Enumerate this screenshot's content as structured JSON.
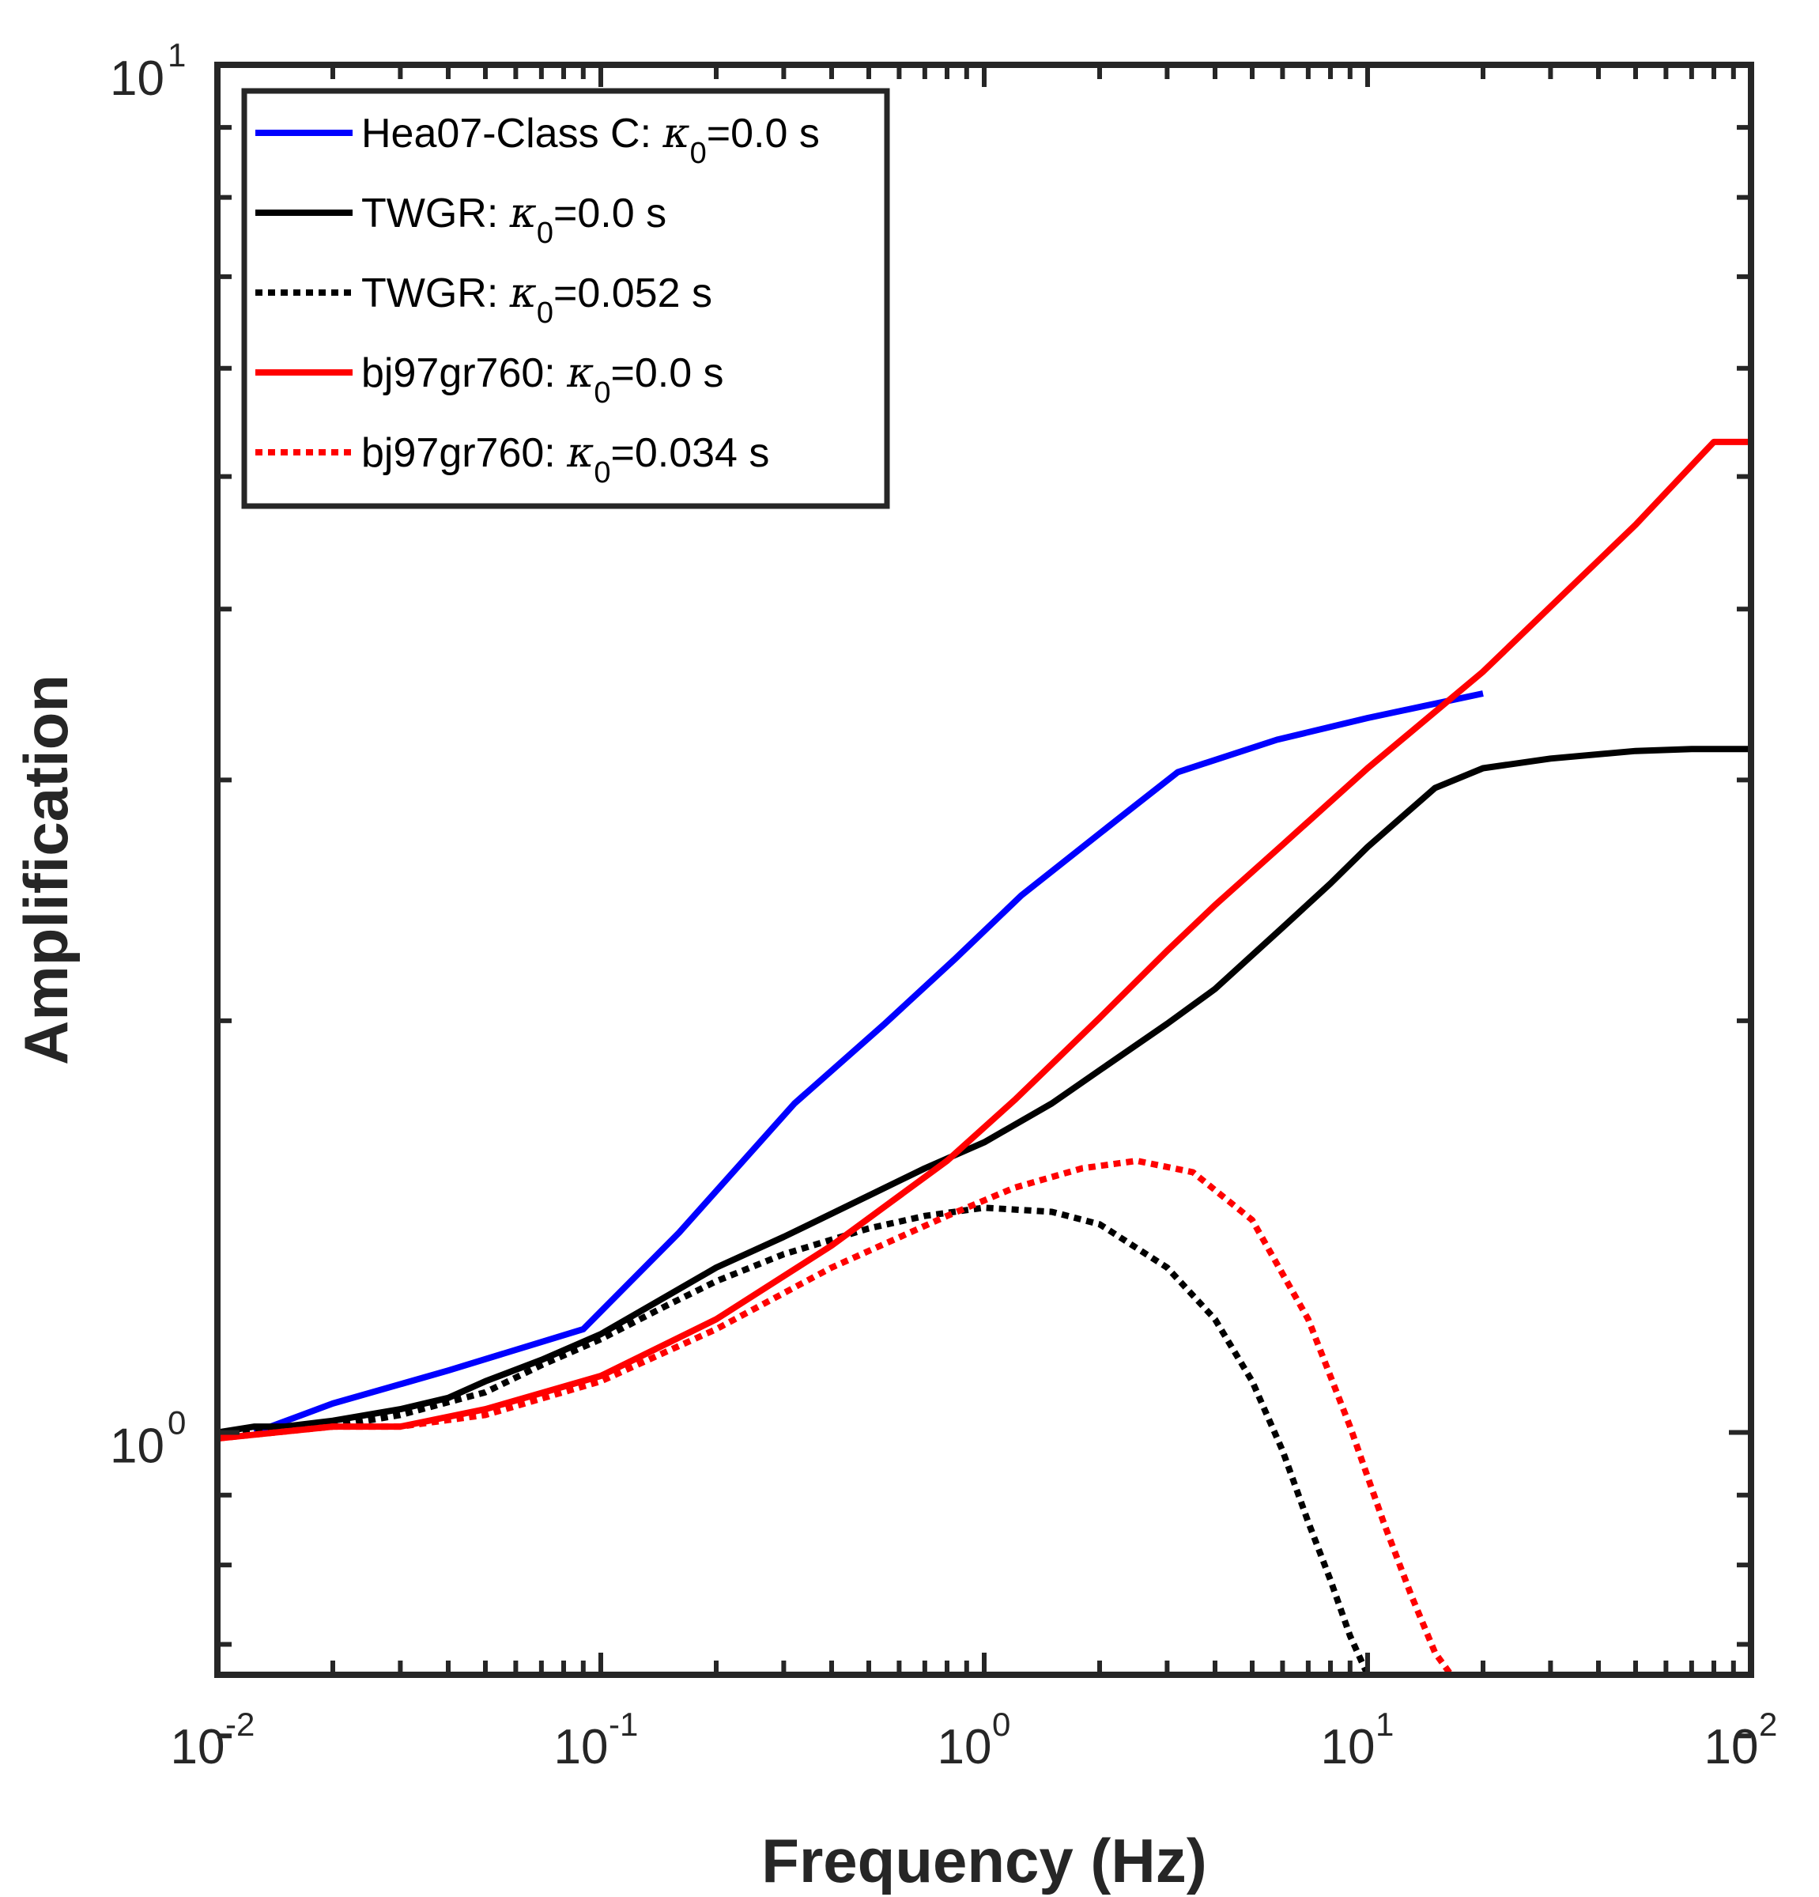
{
  "chart_data": {
    "type": "line",
    "xlabel": "Frequency (Hz)",
    "ylabel": "Amplification",
    "xscale": "log",
    "yscale": "log",
    "xlim": [
      0.01,
      100
    ],
    "ylim": [
      0.665,
      10
    ],
    "xticks": [
      {
        "base": "10",
        "exp": "-2"
      },
      {
        "base": "10",
        "exp": "-1"
      },
      {
        "base": "10",
        "exp": "0"
      },
      {
        "base": "10",
        "exp": "1"
      },
      {
        "base": "10",
        "exp": "2"
      }
    ],
    "yticks": [
      {
        "base": "10",
        "exp": "0"
      },
      {
        "base": "10",
        "exp": "1"
      }
    ],
    "legend_position": "top-left",
    "grid": false,
    "series": [
      {
        "label": "Hea07-Class C: ",
        "kappa_value": "=0.0 s",
        "color": "#0000ff",
        "style": "solid",
        "x": [
          0.0125,
          0.02,
          0.04,
          0.09,
          0.16,
          0.32,
          0.55,
          0.84,
          1.25,
          2.2,
          3.2,
          5.8,
          10,
          20
        ],
        "y": [
          1.0,
          1.05,
          1.11,
          1.19,
          1.4,
          1.74,
          1.99,
          2.22,
          2.47,
          2.8,
          3.04,
          3.21,
          3.33,
          3.47
        ]
      },
      {
        "label": "TWGR: ",
        "kappa_value": "=0.0 s",
        "color": "#000000",
        "style": "solid",
        "x": [
          0.01,
          0.0125,
          0.015,
          0.02,
          0.03,
          0.04,
          0.05,
          0.07,
          0.1,
          0.15,
          0.2,
          0.3,
          0.5,
          0.7,
          1.0,
          1.5,
          2.0,
          3.0,
          4.0,
          6.0,
          8.0,
          10,
          15,
          20,
          30,
          50,
          70,
          100
        ],
        "y": [
          1.0,
          1.01,
          1.01,
          1.02,
          1.04,
          1.06,
          1.09,
          1.13,
          1.18,
          1.26,
          1.32,
          1.39,
          1.49,
          1.56,
          1.63,
          1.74,
          1.84,
          1.99,
          2.11,
          2.34,
          2.52,
          2.68,
          2.96,
          3.06,
          3.11,
          3.15,
          3.16,
          3.16
        ]
      },
      {
        "label": "TWGR: ",
        "kappa_value": "=0.052 s",
        "color": "#000000",
        "style": "dotted",
        "x": [
          0.01,
          0.015,
          0.02,
          0.03,
          0.05,
          0.07,
          0.1,
          0.15,
          0.2,
          0.3,
          0.5,
          0.7,
          1.0,
          1.5,
          2.0,
          3.0,
          4.0,
          5.0,
          6.0,
          7.0,
          8.0,
          9.0,
          10.0
        ],
        "y": [
          1.0,
          1.01,
          1.01,
          1.03,
          1.07,
          1.12,
          1.17,
          1.24,
          1.29,
          1.35,
          1.41,
          1.44,
          1.46,
          1.45,
          1.42,
          1.32,
          1.21,
          1.09,
          0.97,
          0.86,
          0.78,
          0.71,
          0.665
        ]
      },
      {
        "label": "bj97gr760: ",
        "kappa_value": "=0.0 s",
        "color": "#ff0000",
        "style": "solid",
        "x": [
          0.01,
          0.02,
          0.03,
          0.05,
          0.1,
          0.2,
          0.4,
          0.8,
          1.2,
          2.0,
          3.0,
          4.0,
          6.0,
          10,
          20,
          50,
          80,
          100
        ],
        "y": [
          0.99,
          1.01,
          1.01,
          1.04,
          1.1,
          1.21,
          1.37,
          1.58,
          1.75,
          2.01,
          2.25,
          2.43,
          2.69,
          3.06,
          3.6,
          4.61,
          5.3,
          5.3
        ]
      },
      {
        "label": "bj97gr760: ",
        "kappa_value": "=0.034 s",
        "color": "#ff0000",
        "style": "dotted",
        "x": [
          0.01,
          0.02,
          0.03,
          0.05,
          0.1,
          0.2,
          0.4,
          0.8,
          1.2,
          1.8,
          2.5,
          3.5,
          5.0,
          7.0,
          9.0,
          11.0,
          13.0,
          15.0,
          16.5
        ],
        "y": [
          0.99,
          1.01,
          1.01,
          1.03,
          1.09,
          1.19,
          1.32,
          1.44,
          1.51,
          1.56,
          1.58,
          1.55,
          1.43,
          1.21,
          1.01,
          0.86,
          0.76,
          0.69,
          0.665
        ]
      }
    ]
  }
}
